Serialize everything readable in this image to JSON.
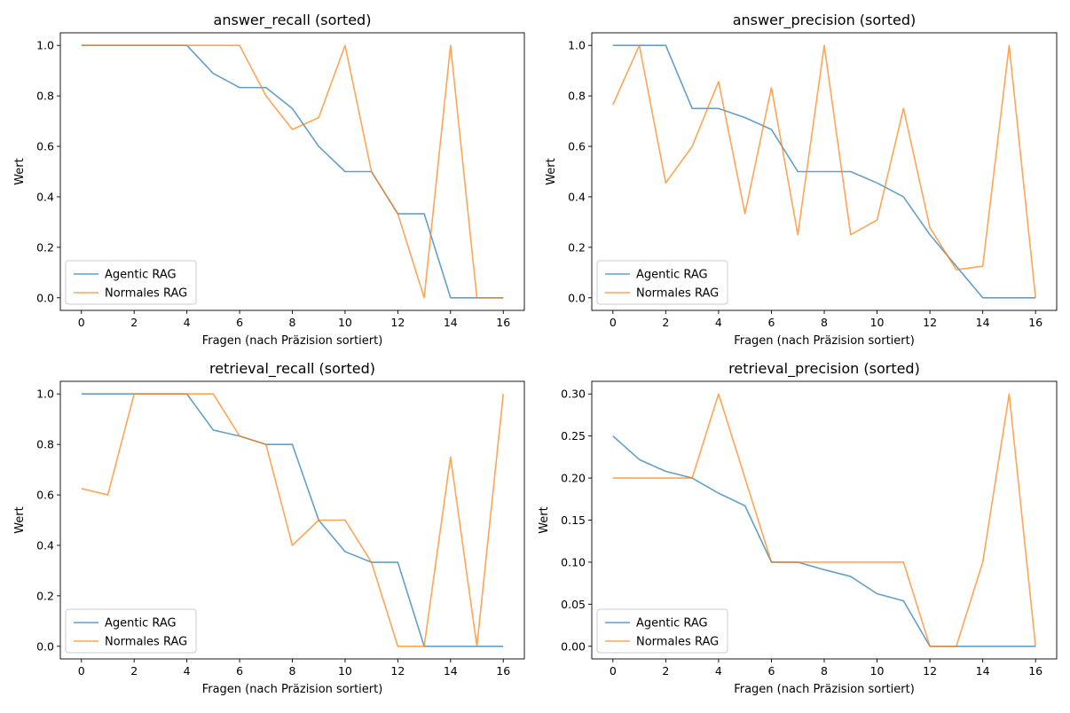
{
  "colors": {
    "agentic": "#1f77b4",
    "normal": "#ff7f0e"
  },
  "chart_data": [
    {
      "type": "line",
      "title": "answer_recall (sorted)",
      "xlabel": "Fragen (nach Präzision sortiert)",
      "ylabel": "Wert",
      "xlim": [
        -0.8,
        16.8
      ],
      "ylim": [
        -0.05,
        1.05
      ],
      "xticks": [
        0,
        2,
        4,
        6,
        8,
        10,
        12,
        14,
        16
      ],
      "yticks": [
        0.0,
        0.2,
        0.4,
        0.6,
        0.8,
        1.0
      ],
      "ytick_decimals": 1,
      "legend": "lower-left",
      "x": [
        0,
        1,
        2,
        3,
        4,
        5,
        6,
        7,
        8,
        9,
        10,
        11,
        12,
        13,
        14,
        15,
        16
      ],
      "series": [
        {
          "name": "Agentic RAG",
          "values": [
            1.0,
            1.0,
            1.0,
            1.0,
            1.0,
            0.889,
            0.833,
            0.833,
            0.75,
            0.6,
            0.5,
            0.5,
            0.333,
            0.333,
            0.0,
            0.0,
            0.0
          ]
        },
        {
          "name": "Normales RAG",
          "values": [
            1.0,
            1.0,
            1.0,
            1.0,
            1.0,
            1.0,
            1.0,
            0.8,
            0.667,
            0.714,
            1.0,
            0.5,
            0.333,
            0.0,
            1.0,
            0.0,
            0.0
          ]
        }
      ]
    },
    {
      "type": "line",
      "title": "answer_precision (sorted)",
      "xlabel": "Fragen (nach Präzision sortiert)",
      "ylabel": "Wert",
      "xlim": [
        -0.8,
        16.8
      ],
      "ylim": [
        -0.05,
        1.05
      ],
      "xticks": [
        0,
        2,
        4,
        6,
        8,
        10,
        12,
        14,
        16
      ],
      "yticks": [
        0.0,
        0.2,
        0.4,
        0.6,
        0.8,
        1.0
      ],
      "ytick_decimals": 1,
      "legend": "lower-left",
      "x": [
        0,
        1,
        2,
        3,
        4,
        5,
        6,
        7,
        8,
        9,
        10,
        11,
        12,
        13,
        14,
        15,
        16
      ],
      "series": [
        {
          "name": "Agentic RAG",
          "values": [
            1.0,
            1.0,
            1.0,
            0.75,
            0.75,
            0.714,
            0.667,
            0.5,
            0.5,
            0.5,
            0.455,
            0.4,
            0.25,
            0.125,
            0.0,
            0.0,
            0.0
          ]
        },
        {
          "name": "Normales RAG",
          "values": [
            0.765,
            1.0,
            0.455,
            0.6,
            0.857,
            0.333,
            0.833,
            0.25,
            1.0,
            0.25,
            0.308,
            0.75,
            0.278,
            0.111,
            0.125,
            1.0,
            0.0
          ]
        }
      ]
    },
    {
      "type": "line",
      "title": "retrieval_recall (sorted)",
      "xlabel": "Fragen (nach Präzision sortiert)",
      "ylabel": "Wert",
      "xlim": [
        -0.8,
        16.8
      ],
      "ylim": [
        -0.05,
        1.05
      ],
      "xticks": [
        0,
        2,
        4,
        6,
        8,
        10,
        12,
        14,
        16
      ],
      "yticks": [
        0.0,
        0.2,
        0.4,
        0.6,
        0.8,
        1.0
      ],
      "ytick_decimals": 1,
      "legend": "lower-left",
      "x": [
        0,
        1,
        2,
        3,
        4,
        5,
        6,
        7,
        8,
        9,
        10,
        11,
        12,
        13,
        14,
        15,
        16
      ],
      "series": [
        {
          "name": "Agentic RAG",
          "values": [
            1.0,
            1.0,
            1.0,
            1.0,
            1.0,
            0.857,
            0.833,
            0.8,
            0.8,
            0.5,
            0.375,
            0.333,
            0.333,
            0.0,
            0.0,
            0.0,
            0.0
          ]
        },
        {
          "name": "Normales RAG",
          "values": [
            0.625,
            0.6,
            1.0,
            1.0,
            1.0,
            1.0,
            0.833,
            0.8,
            0.4,
            0.5,
            0.5,
            0.333,
            0.0,
            0.0,
            0.75,
            0.0,
            1.0
          ]
        }
      ]
    },
    {
      "type": "line",
      "title": "retrieval_precision (sorted)",
      "xlabel": "Fragen (nach Präzision sortiert)",
      "ylabel": "Wert",
      "xlim": [
        -0.8,
        16.8
      ],
      "ylim": [
        -0.015,
        0.315
      ],
      "xticks": [
        0,
        2,
        4,
        6,
        8,
        10,
        12,
        14,
        16
      ],
      "yticks": [
        0.0,
        0.05,
        0.1,
        0.15,
        0.2,
        0.25,
        0.3
      ],
      "ytick_decimals": 2,
      "legend": "lower-left",
      "x": [
        0,
        1,
        2,
        3,
        4,
        5,
        6,
        7,
        8,
        9,
        10,
        11,
        12,
        13,
        14,
        15,
        16
      ],
      "series": [
        {
          "name": "Agentic RAG",
          "values": [
            0.25,
            0.222,
            0.208,
            0.2,
            0.182,
            0.167,
            0.1,
            0.1,
            0.091,
            0.083,
            0.0625,
            0.054,
            0.0,
            0.0,
            0.0,
            0.0,
            0.0
          ]
        },
        {
          "name": "Normales RAG",
          "values": [
            0.2,
            0.2,
            0.2,
            0.2,
            0.3,
            0.2,
            0.1,
            0.1,
            0.1,
            0.1,
            0.1,
            0.1,
            0.0,
            0.0,
            0.1,
            0.3,
            0.0
          ]
        }
      ]
    }
  ]
}
